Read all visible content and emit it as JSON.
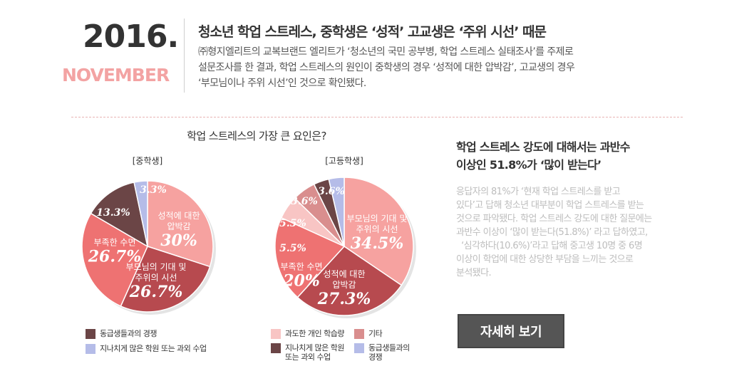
{
  "date": {
    "year": "2016.",
    "month": "NOVEMBER"
  },
  "headline": "청소년 학업 스트레스, 중학생은 ‘성적’ 고교생은 ‘주위 시선’ 때문",
  "intro_lines": [
    "㈜형지엘리트의 교복브랜드 엘리트가 ‘청소년의 국민 공부병, 학업 스트레스 실태조사’를 주제로",
    "설문조사를 한 결과, 학업 스트레스의 원인이 중학생의 경우 ‘성적에 대한 압박감’, 고교생의 경우",
    "‘부모님이나 주위 시선’인 것으로 확인됐다."
  ],
  "question_title": "학업 스트레스의 가장 큰 요인은?",
  "chart_data": [
    {
      "type": "pie",
      "title": "[중학생]",
      "slices": [
        {
          "lines": [
            "성적에 대한",
            "압박감"
          ],
          "value_label": "30%",
          "value": 30,
          "color": "#f6a2a0"
        },
        {
          "lines": [
            "부모님의 기대 및",
            "주위의 시선"
          ],
          "value_label": "26.7%",
          "value": 26.7,
          "color": "#b74a4f"
        },
        {
          "lines": [
            "부족한 수면"
          ],
          "value_label": "26.7%",
          "value": 26.7,
          "color": "#ee7272"
        },
        {
          "lines": [],
          "value_label": "13.3%",
          "value": 13.3,
          "color": "#6b4546"
        },
        {
          "lines": [],
          "value_label": "3.3%",
          "value": 3.3,
          "color": "#b5bce8"
        }
      ]
    },
    {
      "type": "pie",
      "title": "[고등학생]",
      "slices": [
        {
          "lines": [
            "부모님의 기대 및",
            "주위의 시선"
          ],
          "value_label": "34.5%",
          "value": 34.5,
          "color": "#f6a2a0"
        },
        {
          "lines": [
            "성적에 대한",
            "압박감"
          ],
          "value_label": "27.3%",
          "value": 27.3,
          "color": "#b74a4f"
        },
        {
          "lines": [
            "부족한 수면"
          ],
          "value_label": "20%",
          "value": 20,
          "color": "#ee7272"
        },
        {
          "lines": [],
          "value_label": "5.5%",
          "value": 5.5,
          "color": "#f8c5c4"
        },
        {
          "lines": [],
          "value_label": "5.5%",
          "value": 5.5,
          "color": "#d98e8e"
        },
        {
          "lines": [],
          "value_label": "3.6%",
          "value": 3.6,
          "color": "#6b4546"
        },
        {
          "lines": [],
          "value_label": "3.6%",
          "value": 3.6,
          "color": "#b5bce8"
        }
      ]
    }
  ],
  "legend_left": [
    {
      "label": "동급생들과의 경쟁",
      "color": "#6b4546"
    },
    {
      "label": "지나치게 많은 학원 또는 과외 수업",
      "color": "#b5bce8"
    }
  ],
  "legend_right": [
    {
      "lines": [
        "과도한 개인 학습량"
      ],
      "color": "#f8c5c4"
    },
    {
      "lines": [
        "기타"
      ],
      "color": "#d98e8e"
    },
    {
      "lines": [
        "지나치게 많은 학원",
        "또는 과외 수업"
      ],
      "color": "#6b4546"
    },
    {
      "lines": [
        "동급생들과의",
        "경쟁"
      ],
      "color": "#b5bce8"
    }
  ],
  "right_title_lines": [
    "학업 스트레스 강도에 대해서는 과반수",
    "이상인 51.8%가 ‘많이 받는다’"
  ],
  "right_body_lines": [
    "응답자의 81%가 ‘현재 학업 스트레스를 받고",
    "있다’고 답해 청소년 대부분이 학업 스트레스를 받는",
    "것으로 파악됐다. 학업 스트레스 강도에 대한 질문에는",
    "과반수 이상이 ‘많이 받는다(51.8%)’ 라고 답하였고,",
    "  ‘심각하다(10.6%)’라고 답해 중고생 10명 중 6명",
    "이상이 학업에 대한 상당한 부담을 느끼는 것으로",
    "분석됐다."
  ],
  "more_button": "자세히 보기"
}
